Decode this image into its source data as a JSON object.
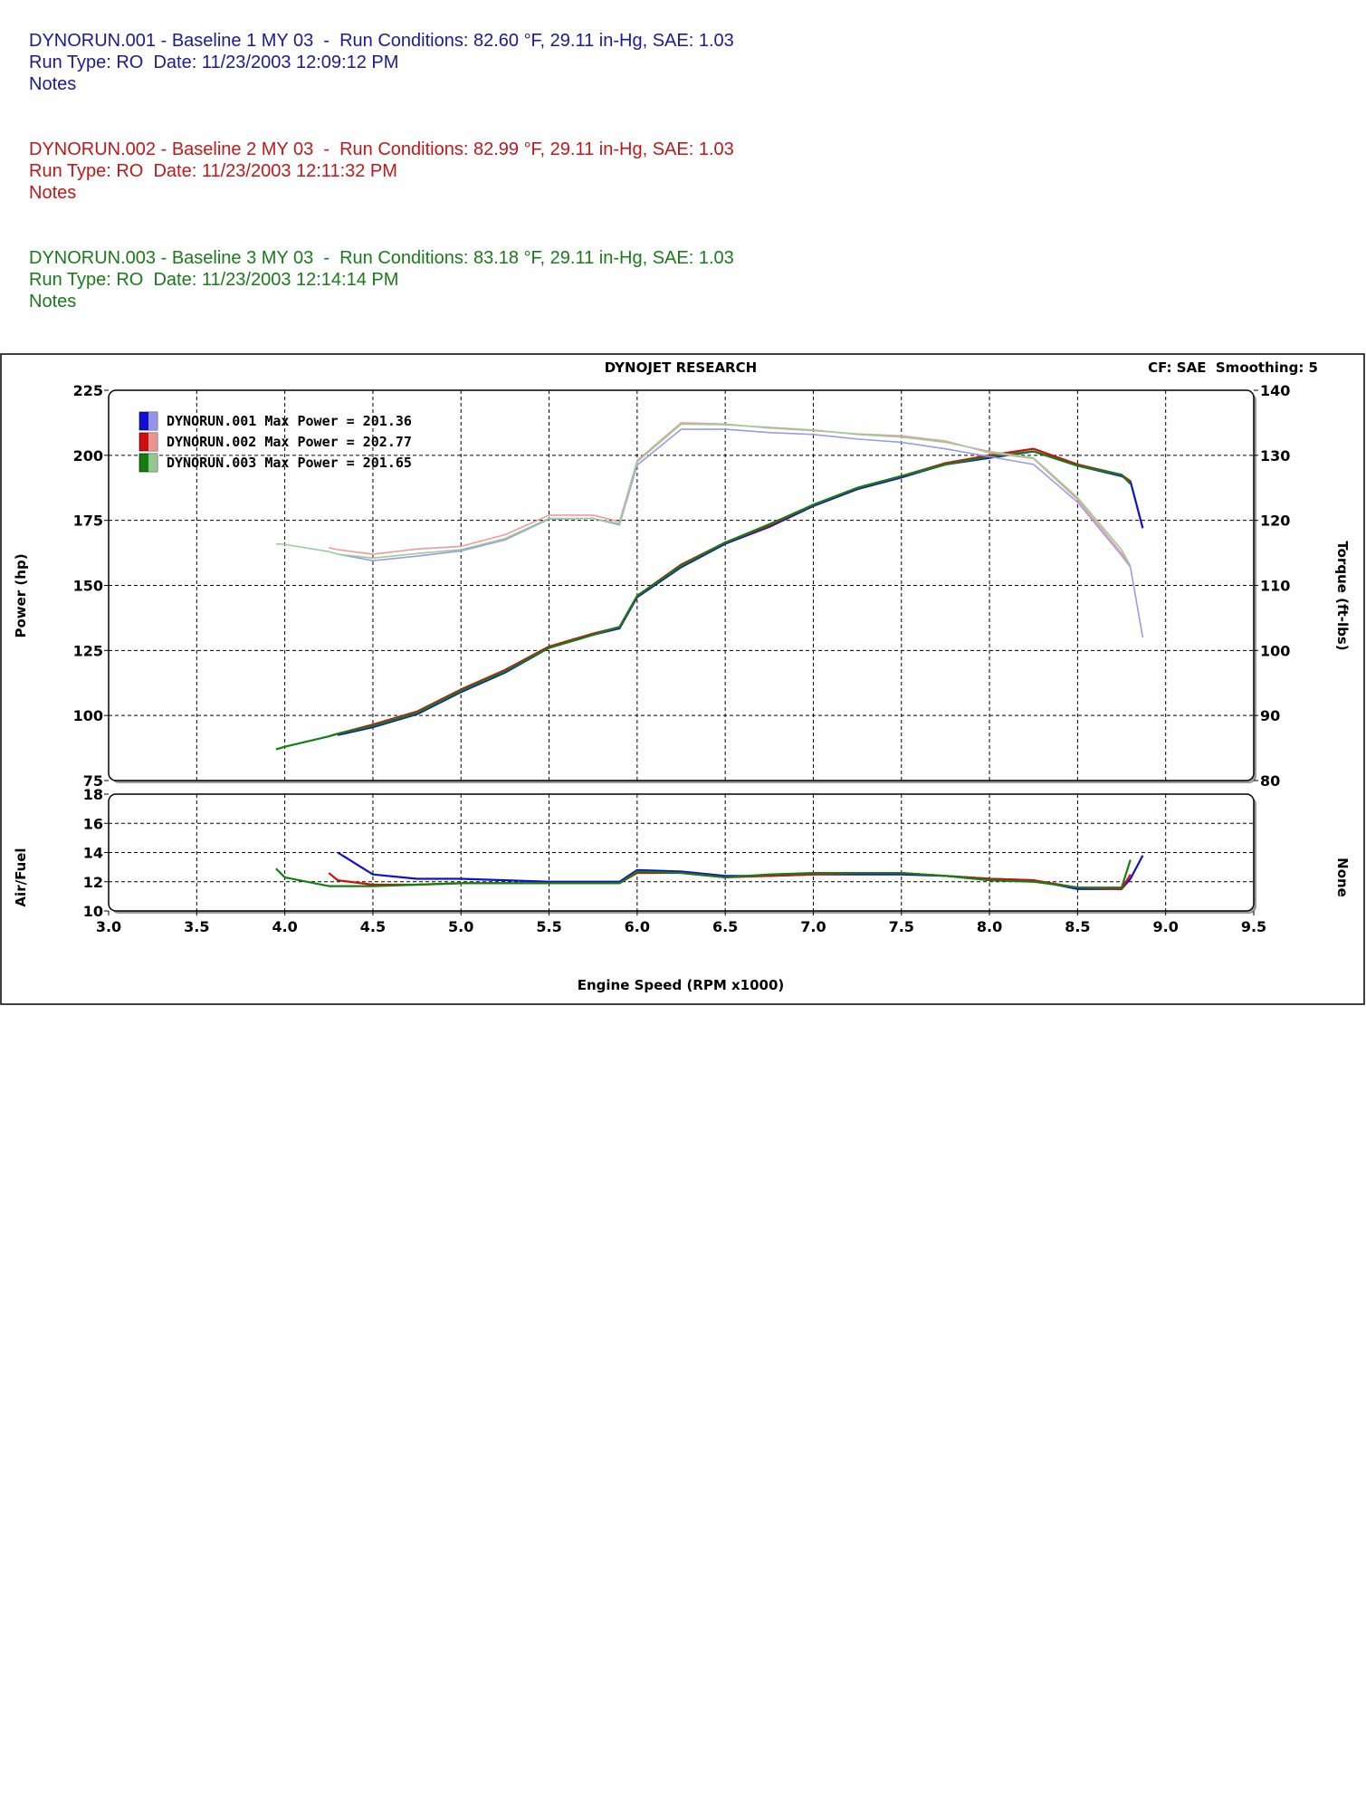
{
  "header": {
    "runs": [
      {
        "title": "DYNORUN.001 - Baseline 1 MY 03  -  Run Conditions: 82.60 °F, 29.11 in-Hg, SAE: 1.03",
        "run": "Run Type: RO  Date: 11/23/2003 12:09:12 PM",
        "notes": "Notes"
      },
      {
        "title": "DYNORUN.002 - Baseline 2 MY 03  -  Run Conditions: 82.99 °F, 29.11 in-Hg, SAE: 1.03",
        "run": "Run Type: RO  Date: 11/23/2003 12:11:32 PM",
        "notes": "Notes"
      },
      {
        "title": "DYNORUN.003 - Baseline 3 MY 03  -  Run Conditions: 83.18 °F, 29.11 in-Hg, SAE: 1.03",
        "run": "Run Type: RO  Date: 11/23/2003 12:14:14 PM",
        "notes": "Notes"
      }
    ]
  },
  "chart_data": [
    {
      "type": "line",
      "title": "DYNOJET RESEARCH",
      "annotation": "CF: SAE  Smoothing: 5",
      "ylabel": "Power (hp)",
      "y2label": "Torque (ft-lbs)",
      "xlim": [
        3.0,
        9.5
      ],
      "ylim": [
        75,
        225
      ],
      "yticks": [
        75,
        100,
        125,
        150,
        175,
        200,
        225
      ],
      "y2lim": [
        80,
        140
      ],
      "y2ticks": [
        80,
        90,
        100,
        110,
        120,
        130,
        140
      ],
      "grid": true,
      "x": [
        3.95,
        4.0,
        4.25,
        4.3,
        4.5,
        4.75,
        5.0,
        5.25,
        5.5,
        5.75,
        5.9,
        6.0,
        6.25,
        6.5,
        6.75,
        7.0,
        7.25,
        7.5,
        7.75,
        8.0,
        8.25,
        8.5,
        8.75,
        8.8,
        8.87
      ],
      "series": [
        {
          "name": "DYNORUN.001 Max Power = 201.36",
          "color": "#1010d0",
          "values": [
            null,
            null,
            null,
            92.5,
            95.5,
            100.5,
            109,
            116.5,
            126,
            131,
            133.5,
            145.5,
            157,
            166,
            172.5,
            180.5,
            187,
            191.5,
            196.5,
            199,
            201.5,
            196,
            192,
            190,
            172
          ]
        },
        {
          "name": "DYNORUN.002 Max Power = 202.77",
          "color": "#d01010",
          "values": [
            null,
            null,
            92,
            93,
            96.5,
            101.5,
            110,
            117.5,
            126.5,
            131.5,
            134,
            146,
            158,
            166.5,
            173,
            181,
            187.5,
            192,
            197,
            200,
            202.5,
            196.5,
            192.5,
            190,
            null
          ]
        },
        {
          "name": "DYNORUN.003 Max Power = 201.65",
          "color": "#108010",
          "values": [
            87,
            88,
            92,
            93,
            96,
            101,
            109.5,
            117,
            126,
            131,
            134,
            146,
            157.5,
            166.5,
            173.5,
            181,
            187.5,
            192,
            196.5,
            199.5,
            201.5,
            196,
            192.5,
            189,
            null
          ]
        },
        {
          "axis": "y2",
          "color": "#9a9ae8",
          "values": [
            null,
            null,
            null,
            114.8,
            113.8,
            114.5,
            115.3,
            117,
            120.2,
            120.3,
            119.3,
            128.5,
            134,
            134,
            133.5,
            133.2,
            132.5,
            132,
            131,
            129.8,
            128.6,
            122.8,
            114.6,
            112.8,
            102
          ]
        },
        {
          "axis": "y2",
          "color": "#ee9a9a",
          "values": [
            null,
            null,
            115.8,
            115.5,
            114.8,
            115.6,
            116,
            117.8,
            120.8,
            120.8,
            119.8,
            129.2,
            135,
            134.8,
            134.2,
            133.8,
            133.3,
            133,
            132.2,
            130.4,
            129.5,
            123.2,
            115,
            113,
            null
          ]
        },
        {
          "axis": "y2",
          "color": "#9acc9a",
          "values": [
            116.4,
            116.3,
            115.2,
            114.8,
            114.2,
            114.9,
            115.5,
            117.2,
            120.3,
            120.3,
            119.5,
            129,
            134.8,
            134.7,
            134.3,
            133.9,
            133.2,
            132.8,
            132,
            130.6,
            129.6,
            123.5,
            115.5,
            113,
            null
          ]
        }
      ]
    },
    {
      "type": "line",
      "ylabel": "Air/Fuel",
      "y2label": "None",
      "xlabel": "Engine Speed (RPM x1000)",
      "xlim": [
        3.0,
        9.5
      ],
      "xticks": [
        {
          "value": 3.0,
          "label": "3.0"
        },
        3.5,
        {
          "value": 4.0,
          "label": "4.0"
        },
        4.5,
        {
          "value": 5.0,
          "label": "5.0"
        },
        5.5,
        {
          "value": 6.0,
          "label": "6.0"
        },
        6.5,
        {
          "value": 7.0,
          "label": "7.0"
        },
        7.5,
        {
          "value": 8.0,
          "label": "8.0"
        },
        8.5,
        {
          "value": 9.0,
          "label": "9.0"
        },
        9.5
      ],
      "ylim": [
        10,
        18
      ],
      "yticks": [
        10,
        12,
        14,
        16,
        18
      ],
      "grid": true,
      "x": [
        3.95,
        4.0,
        4.25,
        4.3,
        4.5,
        4.75,
        5.0,
        5.25,
        5.5,
        5.75,
        5.9,
        6.0,
        6.25,
        6.5,
        6.75,
        7.0,
        7.25,
        7.5,
        7.75,
        8.0,
        8.25,
        8.5,
        8.75,
        8.8,
        8.87
      ],
      "series": [
        {
          "color": "#1010d0",
          "values": [
            null,
            null,
            null,
            14,
            12.5,
            12.2,
            12.2,
            12.1,
            12.0,
            12.0,
            12.0,
            12.8,
            12.7,
            12.4,
            12.4,
            12.5,
            12.5,
            12.5,
            12.4,
            12.2,
            12.1,
            11.5,
            11.5,
            12.2,
            13.8
          ]
        },
        {
          "color": "#d01010",
          "values": [
            null,
            null,
            12.6,
            12.1,
            11.8,
            11.8,
            11.9,
            11.9,
            11.9,
            11.9,
            11.9,
            12.6,
            12.6,
            12.3,
            12.4,
            12.5,
            12.6,
            12.6,
            12.4,
            12.2,
            12.1,
            11.6,
            11.5,
            12.5,
            null
          ]
        },
        {
          "color": "#108010",
          "values": [
            12.9,
            12.3,
            11.7,
            11.7,
            11.7,
            11.8,
            11.9,
            11.9,
            11.9,
            11.9,
            11.9,
            12.7,
            12.6,
            12.3,
            12.5,
            12.6,
            12.6,
            12.6,
            12.4,
            12.1,
            12.0,
            11.6,
            11.6,
            13.5,
            null
          ]
        }
      ]
    }
  ]
}
